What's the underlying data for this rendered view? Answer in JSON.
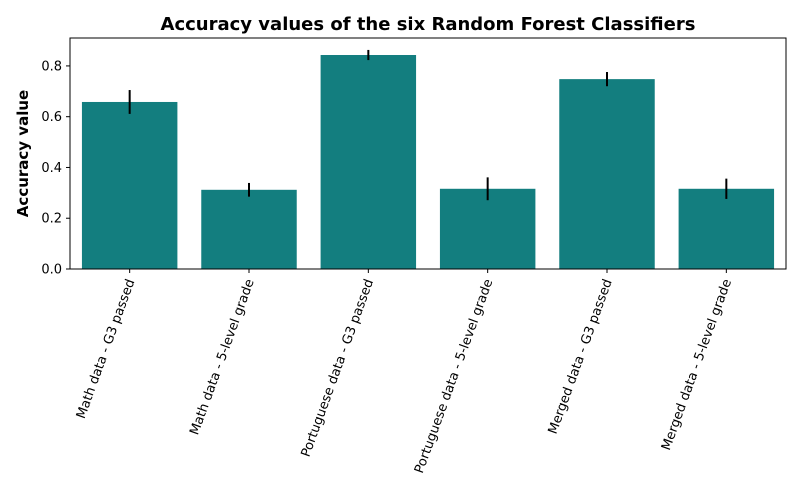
{
  "chart_data": {
    "type": "bar",
    "title": "Accuracy values of the six Random Forest Classifiers",
    "xlabel": "",
    "ylabel": "Accuracy value",
    "categories": [
      "Math data - G3 passed",
      "Math data - 5-level grade",
      "Portuguese data - G3 passed",
      "Portuguese data - 5-level grade",
      "Merged data - G3 passed",
      "Merged data - 5-level grade"
    ],
    "values": [
      0.658,
      0.312,
      0.843,
      0.316,
      0.748,
      0.316
    ],
    "error": [
      0.047,
      0.027,
      0.02,
      0.045,
      0.028,
      0.04
    ],
    "ylim": [
      0,
      0.91
    ],
    "yticks": [
      0.0,
      0.2,
      0.4,
      0.6,
      0.8
    ],
    "ytick_labels": [
      "0.0",
      "0.2",
      "0.4",
      "0.6",
      "0.8"
    ],
    "bar_color": "#137e7f",
    "error_color": "#000000",
    "grid": false,
    "legend": null
  }
}
